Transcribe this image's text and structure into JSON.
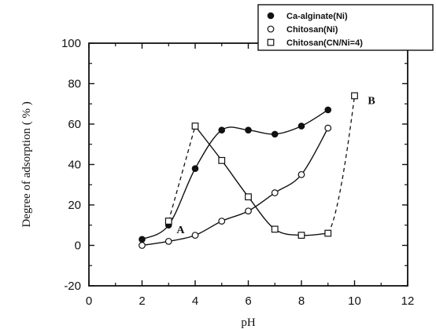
{
  "chart_data": {
    "type": "scatter",
    "title": "",
    "xlabel": "pH",
    "ylabel": "Degree of adsorption ( % )",
    "xlim": [
      0,
      12
    ],
    "ylim": [
      -20,
      100
    ],
    "xticks": [
      "0",
      "2",
      "4",
      "6",
      "8",
      "10",
      "12"
    ],
    "yticks": [
      "100",
      "80",
      "60",
      "40",
      "20",
      "0",
      "-20"
    ],
    "grid": false,
    "legend_position": "top-right",
    "series": [
      {
        "name": "Ca-alginate(Ni)",
        "marker": "filled-circle",
        "line": "solid",
        "x": [
          2,
          3,
          4,
          5,
          6,
          7,
          8,
          9
        ],
        "y": [
          3,
          10,
          38,
          57,
          57,
          55,
          59,
          67
        ]
      },
      {
        "name": "Chitosan(Ni)",
        "marker": "open-circle",
        "line": "solid",
        "x": [
          2,
          3,
          4,
          5,
          6,
          7,
          8,
          9
        ],
        "y": [
          0,
          2,
          5,
          12,
          17,
          26,
          35,
          58
        ]
      },
      {
        "name": "Chitosan(CN/Ni=4)",
        "marker": "open-square",
        "line": "mixed",
        "x": [
          3,
          4,
          5,
          6,
          7,
          8,
          9,
          10
        ],
        "y": [
          12,
          59,
          42,
          24,
          8,
          5,
          6,
          74
        ]
      }
    ],
    "annotations": [
      {
        "text": "A",
        "x": 3.3,
        "y": 6
      },
      {
        "text": "B",
        "x": 10.5,
        "y": 70
      }
    ]
  }
}
